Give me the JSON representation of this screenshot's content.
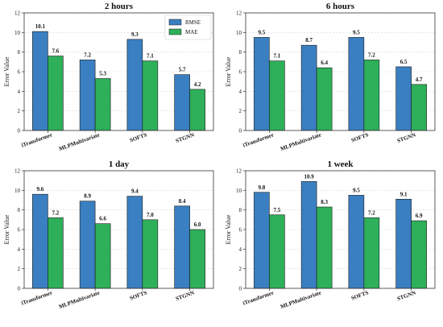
{
  "colors": {
    "rmse": "#3a7fc1",
    "mae": "#2eaf5a"
  },
  "chart_data": [
    {
      "type": "bar",
      "title": "2 hours",
      "ylabel": "Error Value",
      "ylim": [
        0,
        12
      ],
      "yticks": [
        0,
        2,
        4,
        6,
        8,
        10,
        12
      ],
      "grid": true,
      "legend": "top-right",
      "categories": [
        "iTransformer",
        "MLPMultivariate",
        "SOFTS",
        "STGNN"
      ],
      "series": [
        {
          "name": "RMSE",
          "values": [
            10.1,
            7.2,
            9.3,
            5.7
          ],
          "labels": [
            "10.1",
            "7.2",
            "9.3",
            "5.7"
          ]
        },
        {
          "name": "MAE",
          "values": [
            7.6,
            5.3,
            7.1,
            4.2
          ],
          "labels": [
            "7.6",
            "5.3",
            "7.1",
            "4.2"
          ]
        }
      ]
    },
    {
      "type": "bar",
      "title": "6 hours",
      "ylabel": "Error Value",
      "ylim": [
        0,
        12
      ],
      "yticks": [
        0,
        2,
        4,
        6,
        8,
        10,
        12
      ],
      "grid": true,
      "legend": "",
      "categories": [
        "iTransformer",
        "MLPMultivariate",
        "SOFTS",
        "STGNN"
      ],
      "series": [
        {
          "name": "RMSE",
          "values": [
            9.5,
            8.7,
            9.5,
            6.5
          ],
          "labels": [
            "9.5",
            "8.7",
            "9.5",
            "6.5"
          ]
        },
        {
          "name": "MAE",
          "values": [
            7.1,
            6.4,
            7.2,
            4.7
          ],
          "labels": [
            "7.1",
            "6.4",
            "7.2",
            "4.7"
          ]
        }
      ]
    },
    {
      "type": "bar",
      "title": "1 day",
      "ylabel": "Error Value",
      "ylim": [
        0,
        12
      ],
      "yticks": [
        0,
        2,
        4,
        6,
        8,
        10,
        12
      ],
      "grid": true,
      "legend": "",
      "categories": [
        "iTransformer",
        "MLPMultivariate",
        "SOFTS",
        "STGNN"
      ],
      "series": [
        {
          "name": "RMSE",
          "values": [
            9.6,
            8.9,
            9.4,
            8.4
          ],
          "labels": [
            "9.6",
            "8.9",
            "9.4",
            "8.4"
          ]
        },
        {
          "name": "MAE",
          "values": [
            7.2,
            6.6,
            7.0,
            6.0
          ],
          "labels": [
            "7.2",
            "6.6",
            "7.0",
            "6.0"
          ]
        }
      ]
    },
    {
      "type": "bar",
      "title": "1 week",
      "ylabel": "Error Value",
      "ylim": [
        0,
        12
      ],
      "yticks": [
        0,
        2,
        4,
        6,
        8,
        10,
        12
      ],
      "grid": true,
      "legend": "",
      "categories": [
        "iTransformer",
        "MLPMultivariate",
        "SOFTS",
        "STGNN"
      ],
      "series": [
        {
          "name": "RMSE",
          "values": [
            9.8,
            10.9,
            9.5,
            9.1
          ],
          "labels": [
            "9.8",
            "10.9",
            "9.5",
            "9.1"
          ]
        },
        {
          "name": "MAE",
          "values": [
            7.5,
            8.3,
            7.2,
            6.9
          ],
          "labels": [
            "7.5",
            "8.3",
            "7.2",
            "6.9"
          ]
        }
      ]
    }
  ]
}
